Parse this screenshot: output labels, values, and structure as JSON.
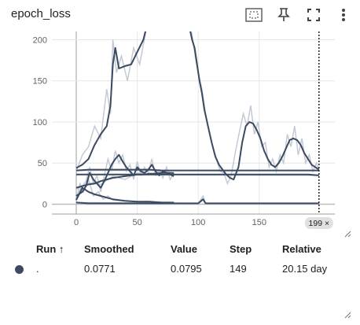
{
  "card": {
    "title": "epoch_loss",
    "icons": [
      "fit-domain-icon",
      "pin-icon",
      "fullscreen-icon",
      "more-vert-icon"
    ]
  },
  "colors": {
    "line": "#3b4a60",
    "raw": "#c3cad6",
    "grid": "#e6e6e6",
    "axis": "#9e9e9e"
  },
  "chart_data": {
    "type": "line",
    "title": "epoch_loss",
    "xlim": [
      -20,
      212
    ],
    "ylim": [
      -12,
      210
    ],
    "x_ticks": [
      0,
      50,
      100,
      150
    ],
    "y_ticks": [
      0,
      50,
      100,
      150,
      200
    ],
    "grid": true,
    "cursor": {
      "x": 199,
      "label": "199 ×"
    },
    "series": [
      {
        "points": [
          [
            0,
            44
          ],
          [
            5,
            48
          ],
          [
            10,
            55
          ],
          [
            15,
            72
          ],
          [
            20,
            85
          ],
          [
            25,
            95
          ],
          [
            28,
            120
          ],
          [
            30,
            170
          ],
          [
            32,
            190
          ],
          [
            35,
            165
          ],
          [
            40,
            168
          ],
          [
            45,
            170
          ],
          [
            50,
            185
          ],
          [
            55,
            200
          ],
          [
            60,
            230
          ],
          [
            64,
            260
          ]
        ],
        "raw": [
          [
            0,
            40
          ],
          [
            5,
            60
          ],
          [
            10,
            70
          ],
          [
            15,
            95
          ],
          [
            20,
            80
          ],
          [
            25,
            140
          ],
          [
            28,
            110
          ],
          [
            30,
            200
          ],
          [
            33,
            160
          ],
          [
            37,
            180
          ],
          [
            42,
            150
          ],
          [
            47,
            190
          ],
          [
            52,
            170
          ],
          [
            57,
            210
          ],
          [
            62,
            240
          ],
          [
            64,
            260
          ]
        ]
      },
      {
        "points": [
          [
            90,
            260
          ],
          [
            92,
            220
          ],
          [
            95,
            200
          ],
          [
            97,
            190
          ],
          [
            99,
            170
          ],
          [
            101,
            150
          ],
          [
            103,
            135
          ],
          [
            105,
            115
          ],
          [
            108,
            95
          ],
          [
            111,
            75
          ],
          [
            114,
            58
          ],
          [
            117,
            48
          ],
          [
            120,
            42
          ],
          [
            123,
            36
          ],
          [
            126,
            32
          ],
          [
            129,
            30
          ],
          [
            133,
            45
          ],
          [
            136,
            75
          ],
          [
            139,
            95
          ],
          [
            142,
            100
          ],
          [
            145,
            98
          ],
          [
            148,
            90
          ],
          [
            151,
            80
          ],
          [
            154,
            65
          ],
          [
            157,
            55
          ],
          [
            160,
            48
          ],
          [
            163,
            45
          ],
          [
            166,
            50
          ],
          [
            169,
            58
          ],
          [
            172,
            68
          ],
          [
            175,
            78
          ],
          [
            178,
            80
          ],
          [
            181,
            78
          ],
          [
            184,
            72
          ],
          [
            187,
            62
          ],
          [
            190,
            55
          ],
          [
            193,
            48
          ],
          [
            196,
            45
          ],
          [
            199,
            42
          ]
        ],
        "raw": [
          [
            90,
            260
          ],
          [
            92,
            230
          ],
          [
            95,
            205
          ],
          [
            98,
            175
          ],
          [
            100,
            160
          ],
          [
            103,
            140
          ],
          [
            106,
            110
          ],
          [
            109,
            88
          ],
          [
            112,
            70
          ],
          [
            115,
            55
          ],
          [
            118,
            40
          ],
          [
            121,
            38
          ],
          [
            124,
            25
          ],
          [
            127,
            35
          ],
          [
            130,
            60
          ],
          [
            134,
            90
          ],
          [
            137,
            110
          ],
          [
            140,
            95
          ],
          [
            143,
            120
          ],
          [
            146,
            85
          ],
          [
            149,
            100
          ],
          [
            152,
            70
          ],
          [
            155,
            75
          ],
          [
            158,
            45
          ],
          [
            161,
            55
          ],
          [
            164,
            40
          ],
          [
            167,
            60
          ],
          [
            170,
            50
          ],
          [
            173,
            85
          ],
          [
            176,
            70
          ],
          [
            179,
            95
          ],
          [
            182,
            60
          ],
          [
            185,
            80
          ],
          [
            188,
            50
          ],
          [
            191,
            60
          ],
          [
            194,
            40
          ],
          [
            197,
            50
          ],
          [
            199,
            40
          ]
        ]
      },
      {
        "points": [
          [
            0,
            41
          ],
          [
            10,
            42
          ],
          [
            20,
            42
          ],
          [
            30,
            42
          ],
          [
            40,
            42
          ],
          [
            50,
            42
          ],
          [
            60,
            42
          ],
          [
            70,
            41
          ],
          [
            80,
            41
          ],
          [
            90,
            41
          ],
          [
            100,
            41
          ],
          [
            110,
            41
          ],
          [
            120,
            41
          ],
          [
            130,
            41
          ],
          [
            140,
            41
          ],
          [
            150,
            41
          ],
          [
            160,
            41
          ],
          [
            170,
            41
          ],
          [
            180,
            41
          ],
          [
            190,
            41
          ],
          [
            199,
            41
          ]
        ],
        "raw": [
          [
            0,
            41
          ],
          [
            199,
            41
          ]
        ]
      },
      {
        "points": [
          [
            0,
            36
          ],
          [
            10,
            36
          ],
          [
            20,
            36
          ],
          [
            30,
            36
          ],
          [
            40,
            36
          ],
          [
            50,
            36
          ],
          [
            60,
            36
          ],
          [
            70,
            36
          ],
          [
            80,
            36
          ],
          [
            90,
            36
          ],
          [
            100,
            36
          ],
          [
            110,
            36
          ],
          [
            120,
            36
          ],
          [
            130,
            36
          ],
          [
            140,
            36
          ],
          [
            150,
            36
          ],
          [
            160,
            36
          ],
          [
            170,
            36
          ],
          [
            180,
            36
          ],
          [
            190,
            36
          ],
          [
            199,
            35
          ]
        ],
        "raw": [
          [
            0,
            36
          ],
          [
            199,
            35
          ]
        ]
      },
      {
        "points": [
          [
            0,
            20
          ],
          [
            5,
            22
          ],
          [
            10,
            24
          ],
          [
            15,
            25
          ],
          [
            20,
            28
          ],
          [
            25,
            30
          ],
          [
            30,
            32
          ],
          [
            35,
            33
          ],
          [
            40,
            34
          ],
          [
            45,
            35
          ],
          [
            50,
            36
          ],
          [
            55,
            36
          ],
          [
            60,
            37
          ],
          [
            65,
            37
          ],
          [
            70,
            38
          ],
          [
            75,
            38
          ],
          [
            80,
            38
          ]
        ],
        "raw": [
          [
            0,
            18
          ],
          [
            10,
            26
          ],
          [
            20,
            24
          ],
          [
            30,
            34
          ],
          [
            40,
            30
          ],
          [
            50,
            38
          ],
          [
            60,
            36
          ],
          [
            70,
            40
          ],
          [
            80,
            38
          ]
        ]
      },
      {
        "points": [
          [
            0,
            10
          ],
          [
            5,
            15
          ],
          [
            8,
            22
          ],
          [
            11,
            38
          ],
          [
            14,
            30
          ],
          [
            17,
            25
          ],
          [
            20,
            20
          ],
          [
            23,
            28
          ],
          [
            26,
            38
          ],
          [
            29,
            48
          ],
          [
            32,
            55
          ],
          [
            35,
            60
          ],
          [
            38,
            52
          ],
          [
            41,
            45
          ],
          [
            44,
            40
          ],
          [
            47,
            35
          ],
          [
            50,
            45
          ],
          [
            53,
            40
          ],
          [
            56,
            38
          ],
          [
            59,
            42
          ],
          [
            62,
            48
          ],
          [
            65,
            40
          ],
          [
            68,
            35
          ],
          [
            71,
            40
          ],
          [
            74,
            38
          ],
          [
            77,
            36
          ],
          [
            80,
            34
          ]
        ],
        "raw": [
          [
            0,
            8
          ],
          [
            4,
            20
          ],
          [
            8,
            28
          ],
          [
            11,
            45
          ],
          [
            14,
            25
          ],
          [
            17,
            35
          ],
          [
            20,
            15
          ],
          [
            23,
            35
          ],
          [
            26,
            55
          ],
          [
            29,
            40
          ],
          [
            32,
            65
          ],
          [
            35,
            50
          ],
          [
            38,
            60
          ],
          [
            41,
            40
          ],
          [
            44,
            48
          ],
          [
            47,
            30
          ],
          [
            50,
            52
          ],
          [
            53,
            35
          ],
          [
            56,
            45
          ],
          [
            59,
            38
          ],
          [
            62,
            55
          ],
          [
            65,
            35
          ],
          [
            68,
            42
          ],
          [
            71,
            32
          ],
          [
            74,
            45
          ],
          [
            77,
            30
          ],
          [
            80,
            38
          ]
        ]
      },
      {
        "points": [
          [
            0,
            5
          ],
          [
            5,
            20
          ],
          [
            10,
            15
          ],
          [
            15,
            12
          ],
          [
            20,
            10
          ],
          [
            25,
            8
          ],
          [
            30,
            6
          ],
          [
            35,
            5
          ],
          [
            40,
            4
          ],
          [
            50,
            3
          ],
          [
            60,
            3
          ],
          [
            70,
            2
          ],
          [
            80,
            2
          ]
        ],
        "raw": [
          [
            0,
            5
          ],
          [
            3,
            25
          ],
          [
            6,
            15
          ],
          [
            10,
            30
          ],
          [
            14,
            10
          ],
          [
            18,
            15
          ],
          [
            22,
            6
          ],
          [
            26,
            10
          ],
          [
            30,
            5
          ],
          [
            40,
            4
          ],
          [
            50,
            3
          ],
          [
            80,
            2
          ]
        ]
      },
      {
        "points": [
          [
            0,
            2
          ],
          [
            10,
            1
          ],
          [
            20,
            1
          ],
          [
            30,
            1
          ],
          [
            40,
            1
          ],
          [
            50,
            1
          ],
          [
            60,
            1
          ],
          [
            70,
            1
          ],
          [
            80,
            1
          ],
          [
            90,
            1
          ],
          [
            100,
            1
          ],
          [
            104,
            6
          ],
          [
            106,
            1
          ],
          [
            110,
            1
          ],
          [
            120,
            1
          ],
          [
            130,
            1
          ],
          [
            140,
            1
          ],
          [
            150,
            1
          ],
          [
            160,
            1
          ],
          [
            170,
            1
          ],
          [
            180,
            1
          ],
          [
            190,
            1
          ],
          [
            199,
            1
          ]
        ],
        "raw": [
          [
            0,
            2
          ],
          [
            100,
            1
          ],
          [
            104,
            10
          ],
          [
            106,
            1
          ],
          [
            199,
            1
          ]
        ]
      }
    ]
  },
  "table": {
    "headers": {
      "run": "Run ↑",
      "smoothed": "Smoothed",
      "value": "Value",
      "step": "Step",
      "relative": "Relative"
    },
    "rows": [
      {
        "run": ".",
        "smoothed": "0.0771",
        "value": "0.0795",
        "step": "149",
        "relative": "20.15 day"
      }
    ]
  }
}
